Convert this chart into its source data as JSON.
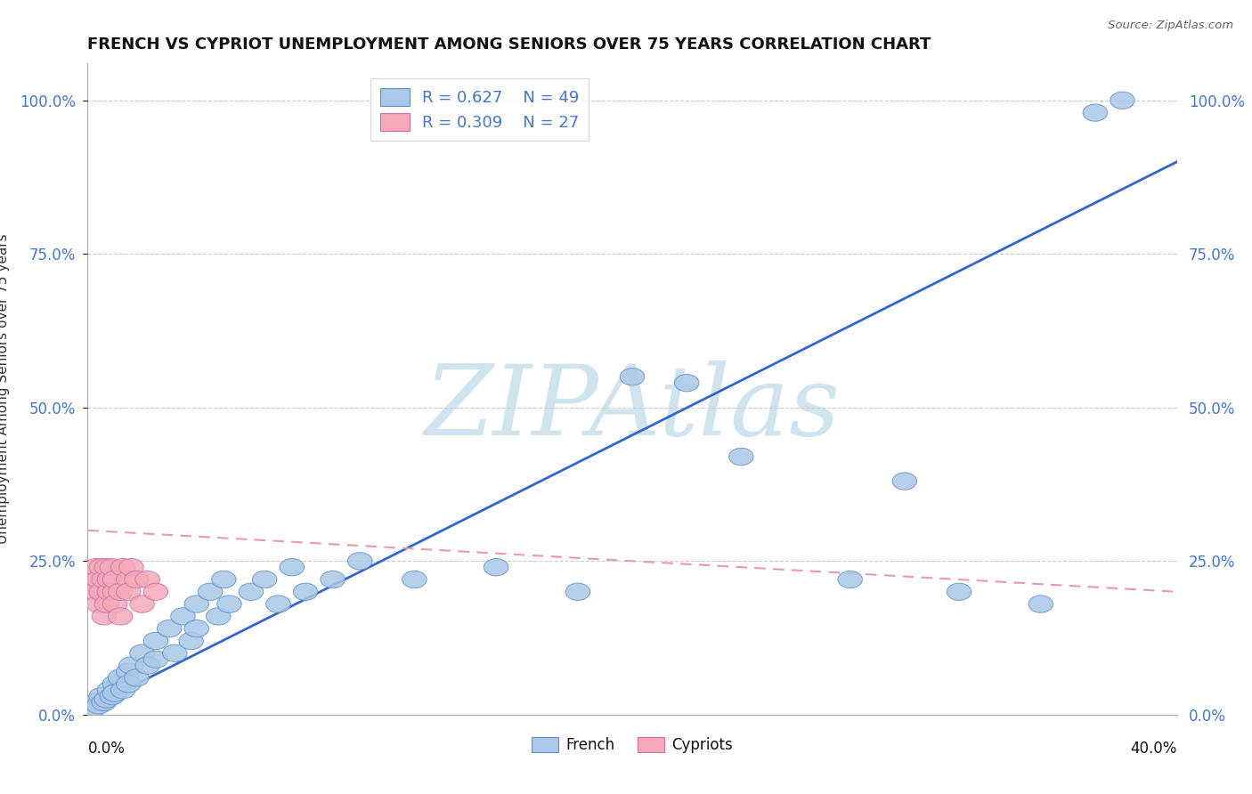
{
  "title": "FRENCH VS CYPRIOT UNEMPLOYMENT AMONG SENIORS OVER 75 YEARS CORRELATION CHART",
  "source": "Source: ZipAtlas.com",
  "ylabel": "Unemployment Among Seniors over 75 years",
  "y_ticks": [
    0.0,
    0.25,
    0.5,
    0.75,
    1.0
  ],
  "y_tick_labels": [
    "0.0%",
    "25.0%",
    "50.0%",
    "75.0%",
    "100.0%"
  ],
  "x_range": [
    0,
    0.4
  ],
  "y_range": [
    0,
    1.06
  ],
  "french_R": 0.627,
  "french_N": 49,
  "cypriot_R": 0.309,
  "cypriot_N": 27,
  "french_color": "#aac8e8",
  "cypriot_color": "#f4aabb",
  "french_line_color": "#3366cc",
  "cypriot_line_color": "#e899aa",
  "watermark": "ZIPAtlas",
  "watermark_color": "#d0e4f0",
  "french_scatter": [
    [
      0.002,
      0.01
    ],
    [
      0.003,
      0.02
    ],
    [
      0.004,
      0.015
    ],
    [
      0.005,
      0.03
    ],
    [
      0.006,
      0.02
    ],
    [
      0.007,
      0.025
    ],
    [
      0.008,
      0.04
    ],
    [
      0.009,
      0.03
    ],
    [
      0.01,
      0.05
    ],
    [
      0.01,
      0.035
    ],
    [
      0.012,
      0.06
    ],
    [
      0.013,
      0.04
    ],
    [
      0.015,
      0.07
    ],
    [
      0.015,
      0.05
    ],
    [
      0.016,
      0.08
    ],
    [
      0.018,
      0.06
    ],
    [
      0.02,
      0.1
    ],
    [
      0.022,
      0.08
    ],
    [
      0.025,
      0.12
    ],
    [
      0.025,
      0.09
    ],
    [
      0.03,
      0.14
    ],
    [
      0.032,
      0.1
    ],
    [
      0.035,
      0.16
    ],
    [
      0.038,
      0.12
    ],
    [
      0.04,
      0.18
    ],
    [
      0.04,
      0.14
    ],
    [
      0.045,
      0.2
    ],
    [
      0.048,
      0.16
    ],
    [
      0.05,
      0.22
    ],
    [
      0.052,
      0.18
    ],
    [
      0.06,
      0.2
    ],
    [
      0.065,
      0.22
    ],
    [
      0.07,
      0.18
    ],
    [
      0.075,
      0.24
    ],
    [
      0.08,
      0.2
    ],
    [
      0.09,
      0.22
    ],
    [
      0.1,
      0.25
    ],
    [
      0.12,
      0.22
    ],
    [
      0.15,
      0.24
    ],
    [
      0.18,
      0.2
    ],
    [
      0.2,
      0.55
    ],
    [
      0.22,
      0.54
    ],
    [
      0.24,
      0.42
    ],
    [
      0.28,
      0.22
    ],
    [
      0.3,
      0.38
    ],
    [
      0.32,
      0.2
    ],
    [
      0.35,
      0.18
    ],
    [
      0.37,
      0.98
    ],
    [
      0.38,
      1.0
    ]
  ],
  "cypriot_scatter": [
    [
      0.002,
      0.22
    ],
    [
      0.003,
      0.2
    ],
    [
      0.003,
      0.24
    ],
    [
      0.004,
      0.18
    ],
    [
      0.004,
      0.22
    ],
    [
      0.005,
      0.2
    ],
    [
      0.005,
      0.24
    ],
    [
      0.006,
      0.16
    ],
    [
      0.006,
      0.22
    ],
    [
      0.007,
      0.18
    ],
    [
      0.007,
      0.24
    ],
    [
      0.008,
      0.2
    ],
    [
      0.008,
      0.22
    ],
    [
      0.009,
      0.24
    ],
    [
      0.01,
      0.2
    ],
    [
      0.01,
      0.18
    ],
    [
      0.01,
      0.22
    ],
    [
      0.012,
      0.2
    ],
    [
      0.012,
      0.16
    ],
    [
      0.013,
      0.24
    ],
    [
      0.015,
      0.22
    ],
    [
      0.015,
      0.2
    ],
    [
      0.016,
      0.24
    ],
    [
      0.018,
      0.22
    ],
    [
      0.02,
      0.18
    ],
    [
      0.022,
      0.22
    ],
    [
      0.025,
      0.2
    ]
  ]
}
